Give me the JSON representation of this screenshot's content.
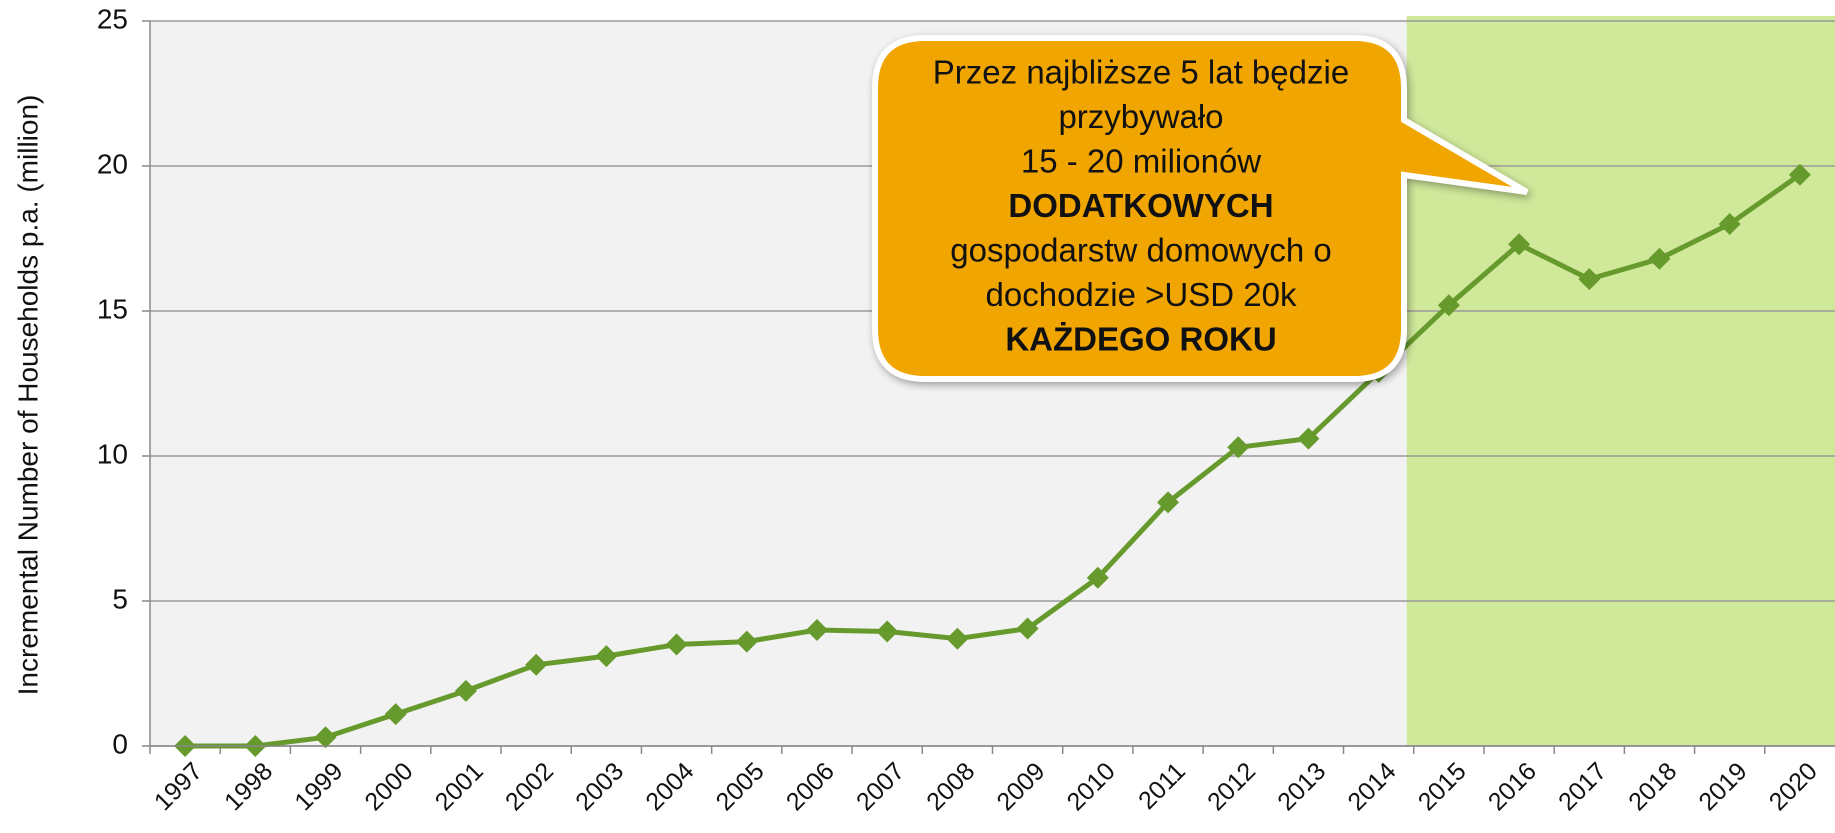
{
  "chart_data": {
    "type": "line",
    "y_axis_label": "Incremental Number of Households p.a. (million)",
    "categories": [
      "1997",
      "1998",
      "1999",
      "2000",
      "2001",
      "2002",
      "2003",
      "2004",
      "2005",
      "2006",
      "2007",
      "2008",
      "2009",
      "2010",
      "2011",
      "2012",
      "2013",
      "2014",
      "2015",
      "2016",
      "2017",
      "2018",
      "2019",
      "2020"
    ],
    "series": [
      {
        "color": "#679a2c",
        "values": [
          0,
          0,
          0.3,
          1.1,
          1.9,
          2.8,
          3.1,
          3.5,
          3.6,
          4.0,
          3.95,
          3.7,
          4.05,
          5.8,
          8.4,
          10.3,
          10.6,
          12.9,
          15.2,
          17.3,
          16.1,
          16.8,
          18.0,
          19.7
        ]
      }
    ],
    "ylim": [
      0,
      25
    ],
    "yticks": [
      0,
      5,
      10,
      15,
      20,
      25
    ],
    "grid": true,
    "highlight": {
      "from": "2015",
      "color": "#cfe89a"
    },
    "annotation": {
      "color": "#f0a500",
      "lines": [
        {
          "text": "Przez najbliższe 5 lat będzie",
          "bold": false
        },
        {
          "text": "przybywało",
          "bold": false
        },
        {
          "text": "15 - 20 milionów",
          "bold": false
        },
        {
          "text": "DODATKOWYCH",
          "bold": true
        },
        {
          "text": "gospodarstw domowych o",
          "bold": false
        },
        {
          "text": "dochodzie >USD 20k",
          "bold": false
        },
        {
          "text": "KAŻDEGO ROKU",
          "bold": true
        }
      ]
    }
  }
}
